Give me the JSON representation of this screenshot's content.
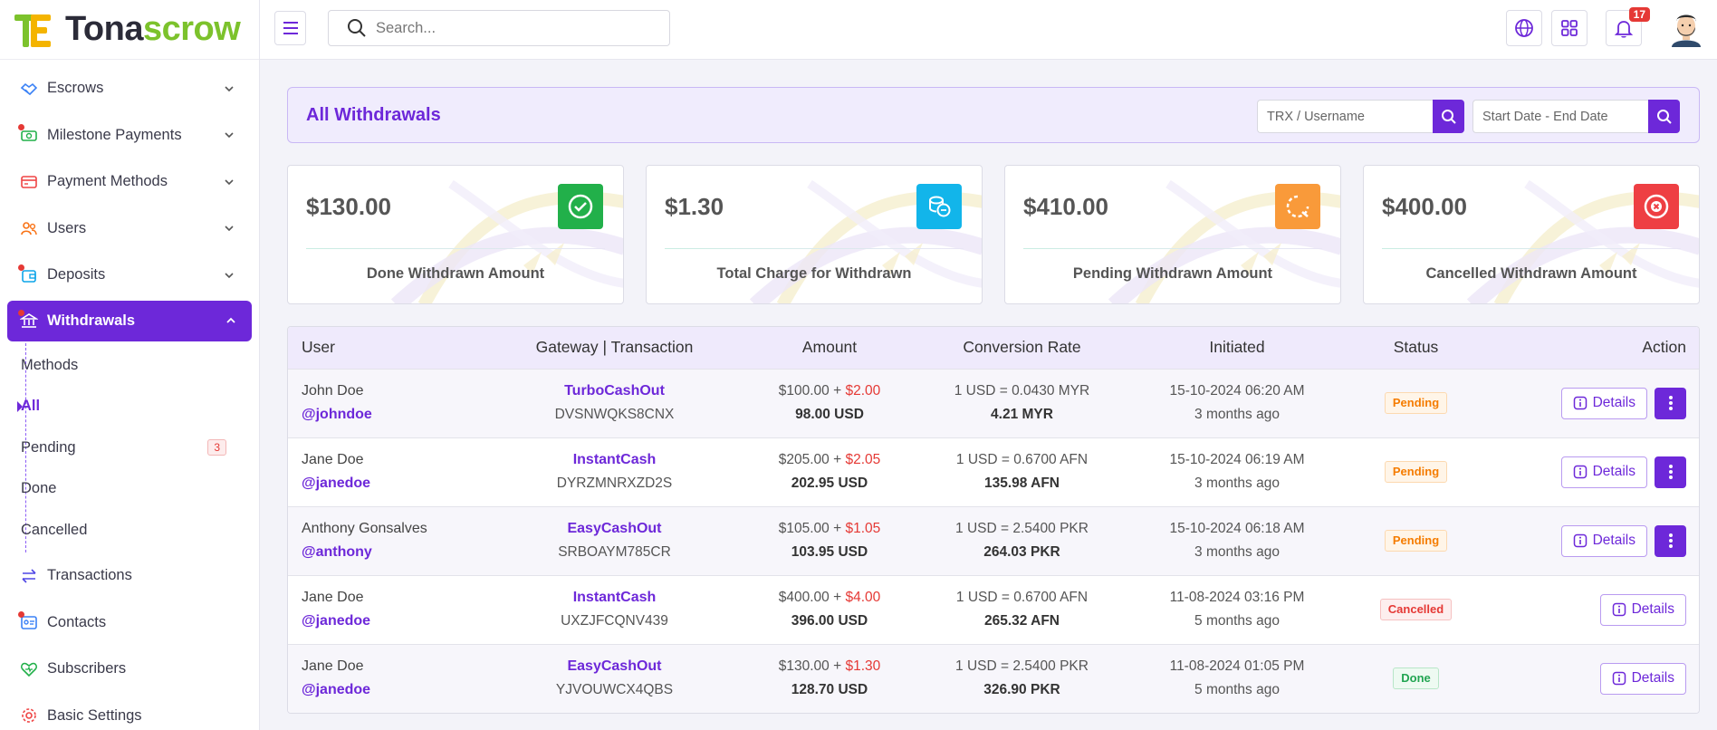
{
  "app": {
    "logo_part1": "Tona",
    "logo_part2": "scrow",
    "accent": "#6d28d9"
  },
  "sidebar": {
    "items": [
      {
        "label": "Escrows",
        "icon": "handshake-icon"
      },
      {
        "label": "Milestone Payments",
        "icon": "money-icon"
      },
      {
        "label": "Payment Methods",
        "icon": "credit-card-icon"
      },
      {
        "label": "Users",
        "icon": "users-icon"
      },
      {
        "label": "Deposits",
        "icon": "wallet-icon"
      },
      {
        "label": "Withdrawals",
        "icon": "bank-icon"
      },
      {
        "label": "Transactions",
        "icon": "arrows-icon"
      },
      {
        "label": "Contacts",
        "icon": "contact-card-icon"
      },
      {
        "label": "Subscribers",
        "icon": "heart-icon"
      },
      {
        "label": "Basic Settings",
        "icon": "gear-icon"
      }
    ],
    "withdrawal_sub": [
      {
        "label": "Methods"
      },
      {
        "label": "All"
      },
      {
        "label": "Pending",
        "count": "3"
      },
      {
        "label": "Done"
      },
      {
        "label": "Cancelled"
      }
    ]
  },
  "topbar": {
    "search_placeholder": "Search...",
    "notification_count": "17"
  },
  "page": {
    "title": "All Withdrawals",
    "trx_placeholder": "TRX / Username",
    "date_placeholder": "Start Date - End Date"
  },
  "cards": [
    {
      "amount": "$130.00",
      "label": "Done Withdrawn Amount",
      "color": "#22b04a",
      "icon": "check-circle-icon"
    },
    {
      "amount": "$1.30",
      "label": "Total Charge for Withdrawn",
      "color": "#12b5ea",
      "icon": "coins-icon"
    },
    {
      "amount": "$410.00",
      "label": "Pending Withdrawn Amount",
      "color": "#f99a3a",
      "icon": "loading-icon"
    },
    {
      "amount": "$400.00",
      "label": "Cancelled Withdrawn Amount",
      "color": "#ee3f43",
      "icon": "x-circle-icon"
    }
  ],
  "table": {
    "headers": [
      "User",
      "Gateway | Transaction",
      "Amount",
      "Conversion Rate",
      "Initiated",
      "Status",
      "Action"
    ],
    "details_label": "Details",
    "rows": [
      {
        "name": "John Doe",
        "handle": "@johndoe",
        "gateway": "TurboCashOut",
        "trx": "DVSNWQKS8CNX",
        "amount": "$100.00 + ",
        "charge": "$2.00",
        "net": "98.00 USD",
        "rate": "1 USD = 0.0430 MYR",
        "converted": "4.21 MYR",
        "date": "15-10-2024 06:20 AM",
        "ago": "3 months ago",
        "status": "Pending",
        "status_class": "pending"
      },
      {
        "name": "Jane Doe",
        "handle": "@janedoe",
        "gateway": "InstantCash",
        "trx": "DYRZMNRXZD2S",
        "amount": "$205.00 + ",
        "charge": "$2.05",
        "net": "202.95 USD",
        "rate": "1 USD = 0.6700 AFN",
        "converted": "135.98 AFN",
        "date": "15-10-2024 06:19 AM",
        "ago": "3 months ago",
        "status": "Pending",
        "status_class": "pending"
      },
      {
        "name": "Anthony Gonsalves",
        "handle": "@anthony",
        "gateway": "EasyCashOut",
        "trx": "SRBOAYM785CR",
        "amount": "$105.00 + ",
        "charge": "$1.05",
        "net": "103.95 USD",
        "rate": "1 USD = 2.5400 PKR",
        "converted": "264.03 PKR",
        "date": "15-10-2024 06:18 AM",
        "ago": "3 months ago",
        "status": "Pending",
        "status_class": "pending"
      },
      {
        "name": "Jane Doe",
        "handle": "@janedoe",
        "gateway": "InstantCash",
        "trx": "UXZJFCQNV439",
        "amount": "$400.00 + ",
        "charge": "$4.00",
        "net": "396.00 USD",
        "rate": "1 USD = 0.6700 AFN",
        "converted": "265.32 AFN",
        "date": "11-08-2024 03:16 PM",
        "ago": "5 months ago",
        "status": "Cancelled",
        "status_class": "cancelled"
      },
      {
        "name": "Jane Doe",
        "handle": "@janedoe",
        "gateway": "EasyCashOut",
        "trx": "YJVOUWCX4QBS",
        "amount": "$130.00 + ",
        "charge": "$1.30",
        "net": "128.70 USD",
        "rate": "1 USD = 2.5400 PKR",
        "converted": "326.90 PKR",
        "date": "11-08-2024 01:05 PM",
        "ago": "5 months ago",
        "status": "Done",
        "status_class": "done"
      }
    ]
  }
}
